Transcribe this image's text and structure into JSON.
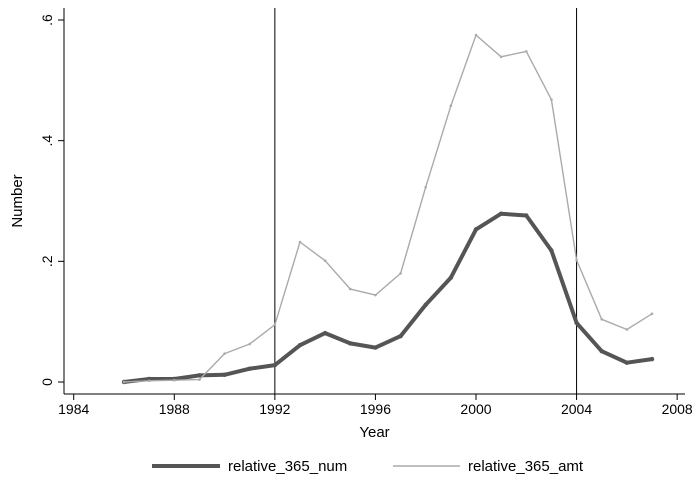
{
  "chart_data": {
    "type": "line",
    "title": "",
    "xlabel": "Year",
    "ylabel": "Number",
    "xlim": [
      1984,
      2008
    ],
    "ylim": [
      0,
      0.6
    ],
    "xticks": [
      1984,
      1988,
      1992,
      1996,
      2000,
      2004,
      2008
    ],
    "xtick_labels": [
      "1984",
      "1988",
      "1992",
      "1996",
      "2000",
      "2004",
      "2008"
    ],
    "yticks": [
      0,
      0.2,
      0.4,
      0.6
    ],
    "ytick_labels": [
      "0",
      ".2",
      ".4",
      ".6"
    ],
    "vlines": [
      1992,
      2004
    ],
    "grid": false,
    "legend_position": "bottom",
    "x": [
      1986,
      1987,
      1988,
      1989,
      1990,
      1991,
      1992,
      1993,
      1994,
      1995,
      1996,
      1997,
      1998,
      1999,
      2000,
      2001,
      2002,
      2003,
      2004,
      2005,
      2006,
      2007
    ],
    "series": [
      {
        "name": "relative_365_num",
        "color": "#555555",
        "style": "thick",
        "values": [
          0.0,
          0.005,
          0.005,
          0.011,
          0.012,
          0.022,
          0.028,
          0.061,
          0.081,
          0.064,
          0.057,
          0.076,
          0.128,
          0.173,
          0.253,
          0.279,
          0.276,
          0.218,
          0.098,
          0.051,
          0.032,
          0.038
        ]
      },
      {
        "name": "relative_365_amt",
        "color": "#aaaaaa",
        "style": "thin",
        "values": [
          0.0,
          0.002,
          0.003,
          0.004,
          0.047,
          0.063,
          0.095,
          0.232,
          0.201,
          0.154,
          0.144,
          0.18,
          0.323,
          0.458,
          0.575,
          0.539,
          0.548,
          0.468,
          0.202,
          0.104,
          0.087,
          0.113
        ]
      }
    ]
  }
}
